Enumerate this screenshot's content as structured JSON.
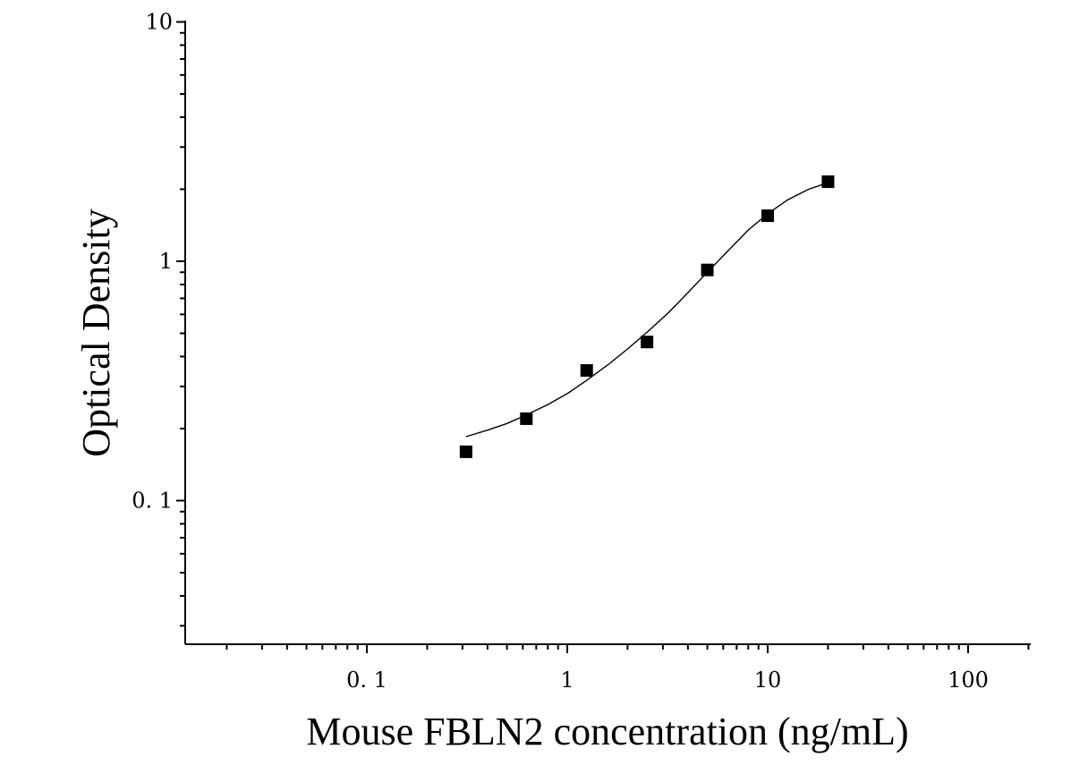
{
  "chart_data": {
    "type": "scatter",
    "title": "",
    "xlabel": "Mouse FBLN2 concentration (ng/mL)",
    "ylabel": "Optical Density",
    "x_scale": "log",
    "y_scale": "log",
    "xlim": [
      0.01,
      200
    ],
    "ylim": [
      0.03,
      10
    ],
    "x_ticks": [
      {
        "value": 0.1,
        "label": "0. 1"
      },
      {
        "value": 1,
        "label": "1"
      },
      {
        "value": 10,
        "label": "10"
      },
      {
        "value": 100,
        "label": "100"
      }
    ],
    "y_ticks": [
      {
        "value": 0.1,
        "label": "0. 1"
      },
      {
        "value": 1,
        "label": "1"
      },
      {
        "value": 10,
        "label": "10"
      }
    ],
    "grid": false,
    "legend": "none",
    "marker_color": "#000000",
    "curve_color": "#000000",
    "series": [
      {
        "x": [
          0.3125,
          0.625,
          1.25,
          2.5,
          5,
          10,
          20
        ],
        "y": [
          0.16,
          0.22,
          0.35,
          0.46,
          0.92,
          1.55,
          2.15
        ]
      }
    ],
    "fit_curve": {
      "x": [
        0.3125,
        0.4,
        0.5,
        0.625,
        0.8,
        1.0,
        1.25,
        1.6,
        2.0,
        2.5,
        3.2,
        4.0,
        5.0,
        6.3,
        8.0,
        10,
        12.5,
        16,
        20
      ],
      "y": [
        0.185,
        0.197,
        0.21,
        0.228,
        0.252,
        0.28,
        0.318,
        0.37,
        0.43,
        0.505,
        0.61,
        0.74,
        0.9,
        1.1,
        1.35,
        1.58,
        1.8,
        2.0,
        2.13
      ]
    }
  }
}
